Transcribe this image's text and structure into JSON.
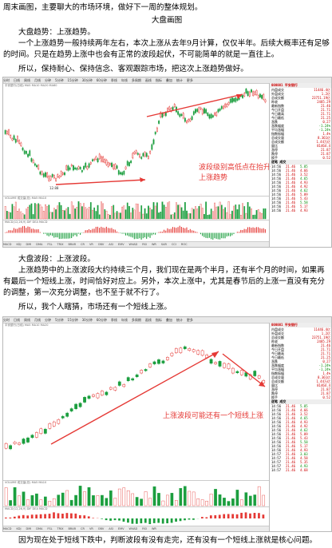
{
  "text": {
    "intro": "周末画图，主要聊大的市场环境，做好下一周的整体规划。",
    "heading": "大盘画图",
    "trend_title": "大盘趋势：上涨趋势。",
    "trend_p1": "一个上涨趋势一般持续两年左右，本次上涨从去年9月计算，仅仅半年。后续大概率还有足够的时间。只是在趋势上涨中也会有正常的波段起伏，不可能简单的就是一直往上。",
    "trend_p2": "所以，保持耐心、保持信念、客观跟踪市场，把这次上涨趋势做好。",
    "wave_title": "大盘波段：上涨波段。",
    "wave_p1": "上涨趋势中的上涨波段大约持续三个月，我们现在是两个半月，还有半个月的时间，如果再有最后一个短线上涨，时间恰好对应上。另外，本次上涨中，尤其是春节后的上涨一直没有充分的调整，第一次充分调整，也不至于就不行了。",
    "wave_p2": "所以，我个人瞎猜，市场还有一个短线上涨。",
    "closing": "因为现在处于短线下跌中，判断波段有没有走完，还有没有一个短线上涨就是核心问题。"
  },
  "chart1": {
    "annotation_line1": "波段级别高低点在抬升",
    "annotation_line2": "上涨趋势",
    "low_label": "12.88",
    "code": "000001 平安银行",
    "arrow_color": "#e53935"
  },
  "chart2": {
    "annotation": "上涨波段可能还有一个短线上涨",
    "code": "000001 平安银行",
    "arrow_color": "#e53935"
  },
  "toolbar": [
    "分时",
    "日线",
    "周线",
    "月线",
    "分钟",
    "5分钟",
    "15分钟",
    "30分钟",
    "60分钟",
    "季线",
    "年线",
    "多周期",
    "画线",
    "指标",
    "叠加",
    "统计",
    "更多"
  ],
  "sidebar_rows": [
    {
      "k": "内盘成交",
      "v": "11446.4亿"
    },
    {
      "k": "外盘成交",
      "v": "1.2亿"
    },
    {
      "k": "总成交额",
      "v": "23751.19亿"
    },
    {
      "k": "昨收",
      "v": "2485.29"
    },
    {
      "k": "最新指数",
      "v": "21.46"
    },
    {
      "k": "今日开盘",
      "v": "21.71"
    },
    {
      "k": "今日最高",
      "v": "21.71"
    },
    {
      "k": "今日最低",
      "v": "21.25"
    },
    {
      "k": "涨跌",
      "v": "0.27"
    },
    {
      "k": "涨跌幅度",
      "v": "-1.24%"
    },
    {
      "k": "平均涨幅",
      "v": "-1.24%"
    },
    {
      "k": "指数振幅",
      "v": "1.4%"
    },
    {
      "k": "总成交量",
      "v": "8.361亿"
    },
    {
      "k": "总成交额",
      "v": "1.44万亿"
    },
    {
      "k": "量比",
      "v": "81464.4"
    },
    {
      "k": "涨停",
      "v": "21.87"
    },
    {
      "k": "跌停",
      "v": "21.87"
    },
    {
      "k": "换手",
      "v": "0.52"
    }
  ],
  "ticks": [
    {
      "t": "14:56",
      "p": "21.46",
      "v": "5.85"
    },
    {
      "t": "14:56",
      "p": "21.46",
      "v": "4.66"
    },
    {
      "t": "14:56",
      "p": "21.46",
      "v": "3.52"
    },
    {
      "t": "14:56",
      "p": "21.46",
      "v": "4.65"
    },
    {
      "t": "14:56",
      "p": "21.46",
      "v": "4.93"
    },
    {
      "t": "14:56",
      "p": "21.46",
      "v": "4.92"
    },
    {
      "t": "14:56",
      "p": "21.46",
      "v": "4.62"
    },
    {
      "t": "14:56",
      "p": "21.46",
      "v": "5.89"
    },
    {
      "t": "14:56",
      "p": "21.46",
      "v": "5.43"
    },
    {
      "t": "14:56",
      "p": "21.46",
      "v": "5.58"
    },
    {
      "t": "14:56",
      "p": "21.46",
      "v": "5.17"
    },
    {
      "t": "14:56",
      "p": "21.46",
      "v": "4.93"
    },
    {
      "t": "14:57",
      "p": "21.46",
      "v": "3.03"
    },
    {
      "t": "14:57",
      "p": "21.46",
      "v": "4.58"
    },
    {
      "t": "14:57",
      "p": "21.46",
      "v": "5.35"
    },
    {
      "t": "14:57",
      "p": "21.46",
      "v": "4.93"
    },
    {
      "t": "14:57",
      "p": "21.46",
      "v": "4.68"
    }
  ]
}
